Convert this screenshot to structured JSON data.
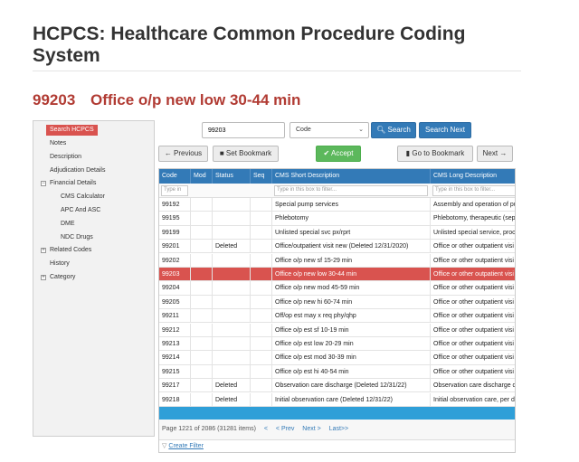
{
  "page": {
    "title": "HCPCS: Healthcare Common Procedure Coding System",
    "code": "99203",
    "code_description": "Office o/p new low 30-44 min"
  },
  "sidebar": {
    "items": [
      {
        "label": "Search HCPCS",
        "active": true
      },
      {
        "label": "Notes"
      },
      {
        "label": "Description"
      },
      {
        "label": "Adjudication Details"
      },
      {
        "label": "Financial Details",
        "toggle": "⊟"
      },
      {
        "label": "CMS Calculator"
      },
      {
        "label": "APC And ASC"
      },
      {
        "label": "DME"
      },
      {
        "label": "NDC Drugs"
      },
      {
        "label": "Related Codes",
        "toggle": "⊞"
      },
      {
        "label": "History"
      },
      {
        "label": "Category",
        "toggle": "⊞"
      }
    ]
  },
  "search": {
    "value": "99203",
    "field_selected": "Code",
    "search_button": "Search",
    "search_next_button": "Search Next"
  },
  "toolbar": {
    "previous": "Previous",
    "set_bookmark": "Set Bookmark",
    "accept": "Accept",
    "go_to_bookmark": "Go to Bookmark",
    "next": "Next"
  },
  "grid": {
    "columns": [
      "Code",
      "Mod",
      "Status",
      "Seq",
      "CMS Short Description",
      "CMS Long Description"
    ],
    "filter_placeholder_code": "Type in",
    "filter_placeholder_short": "Type in this box to filter...",
    "filter_placeholder_long": "Type in this box to filter...",
    "rows": [
      {
        "code": "99192",
        "mod": "",
        "status": "",
        "seq": "",
        "short": "Special pump services",
        "long": "Assembly and operation of pu"
      },
      {
        "code": "99195",
        "mod": "",
        "status": "",
        "seq": "",
        "short": "Phlebotomy",
        "long": "Phlebotomy, therapeutic (sep"
      },
      {
        "code": "99199",
        "mod": "",
        "status": "",
        "seq": "",
        "short": "Unlisted special svc px/rprt",
        "long": "Unlisted special service, proce"
      },
      {
        "code": "99201",
        "mod": "",
        "status": "Deleted",
        "seq": "",
        "short": "Office/outpatient visit new (Deleted 12/31/2020)",
        "long": "Office or other outpatient visi"
      },
      {
        "code": "99202",
        "mod": "",
        "status": "",
        "seq": "",
        "short": "Office o/p new sf 15-29 min",
        "long": "Office or other outpatient visi"
      },
      {
        "code": "99203",
        "mod": "",
        "status": "",
        "seq": "",
        "short": "Office o/p new low 30-44 min",
        "long": "Office or other outpatient visi",
        "selected": true
      },
      {
        "code": "99204",
        "mod": "",
        "status": "",
        "seq": "",
        "short": "Office o/p new mod 45-59 min",
        "long": "Office or other outpatient visi"
      },
      {
        "code": "99205",
        "mod": "",
        "status": "",
        "seq": "",
        "short": "Office o/p new hi 60-74 min",
        "long": "Office or other outpatient visi"
      },
      {
        "code": "99211",
        "mod": "",
        "status": "",
        "seq": "",
        "short": "Off/op est may x req phy/qhp",
        "long": "Office or other outpatient visi"
      },
      {
        "code": "99212",
        "mod": "",
        "status": "",
        "seq": "",
        "short": "Office o/p est sf 10-19 min",
        "long": "Office or other outpatient visi"
      },
      {
        "code": "99213",
        "mod": "",
        "status": "",
        "seq": "",
        "short": "Office o/p est low 20-29 min",
        "long": "Office or other outpatient visi"
      },
      {
        "code": "99214",
        "mod": "",
        "status": "",
        "seq": "",
        "short": "Office o/p est mod 30-39 min",
        "long": "Office or other outpatient visi"
      },
      {
        "code": "99215",
        "mod": "",
        "status": "",
        "seq": "",
        "short": "Office o/p est hi 40-54 min",
        "long": "Office or other outpatient visi"
      },
      {
        "code": "99217",
        "mod": "",
        "status": "Deleted",
        "seq": "",
        "short": "Observation care discharge (Deleted 12/31/22)",
        "long": "Observation care discharge da"
      },
      {
        "code": "99218",
        "mod": "",
        "status": "Deleted",
        "seq": "",
        "short": "Initial observation care (Deleted 12/31/22)",
        "long": "Initial observation care, per da"
      }
    ],
    "pager": {
      "info": "Page 1221 of 2086 (31281 items)",
      "first": "<",
      "prev": "< Prev",
      "next": "Next >",
      "last": "Last>>"
    },
    "create_filter": "Create Filter"
  },
  "colors": {
    "accent_red": "#b13b33",
    "selected_row": "#d9534f",
    "header_blue": "#337ab7",
    "footer_blue": "#2f9fd8",
    "accept_green": "#5cb85c"
  }
}
